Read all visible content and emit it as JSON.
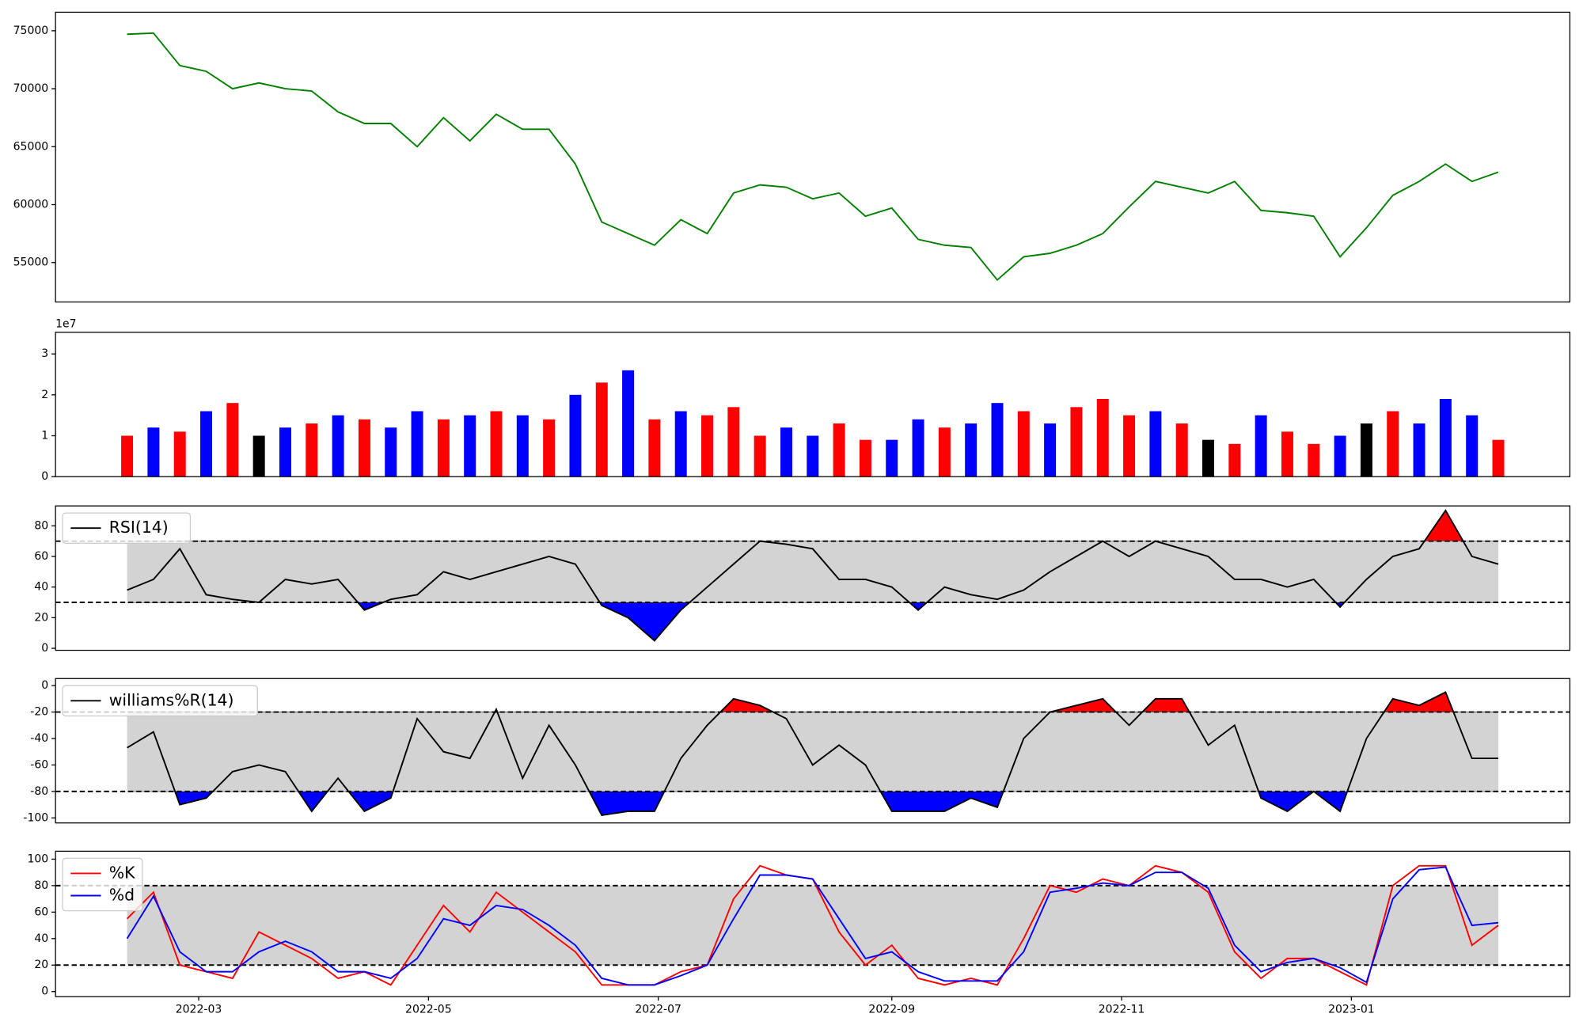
{
  "chart_data": [
    {
      "type": "line",
      "xlim": [
        -19,
        383
      ],
      "ylim": [
        51600,
        76600
      ],
      "yticks": [
        55000,
        60000,
        65000,
        70000,
        75000
      ],
      "x": [
        0,
        7,
        14,
        21,
        28,
        35,
        42,
        49,
        56,
        63,
        70,
        77,
        84,
        91,
        98,
        105,
        112,
        119,
        126,
        133,
        140,
        147,
        154,
        161,
        168,
        175,
        182,
        189,
        196,
        203,
        210,
        217,
        224,
        231,
        238,
        245,
        252,
        259,
        266,
        273,
        280,
        287,
        294,
        301,
        308,
        315,
        322,
        329,
        336,
        343,
        350,
        357,
        364
      ],
      "series": [
        {
          "color": "green",
          "values": [
            74700,
            74800,
            72000,
            71500,
            70000,
            70500,
            70000,
            69800,
            68000,
            67000,
            67000,
            65000,
            67500,
            65500,
            67800,
            66500,
            66500,
            63500,
            58500,
            57500,
            56500,
            58700,
            57500,
            61000,
            61700,
            61500,
            60500,
            61000,
            59000,
            59700,
            57000,
            56500,
            56300,
            53500,
            55500,
            55800,
            56500,
            57500,
            59800,
            62000,
            61500,
            61000,
            62000,
            59500,
            59300,
            59000,
            55500,
            58000,
            60800,
            62000,
            63500,
            62000,
            62800
          ]
        }
      ]
    },
    {
      "type": "bar",
      "xlim": [
        -19,
        383
      ],
      "ylim": [
        0,
        3.53
      ],
      "yticks": [
        0,
        1,
        2,
        3
      ],
      "y_offset_label": "1e7",
      "x": [
        0,
        7,
        14,
        21,
        28,
        35,
        42,
        49,
        56,
        63,
        70,
        77,
        84,
        91,
        98,
        105,
        112,
        119,
        126,
        133,
        140,
        147,
        154,
        161,
        168,
        175,
        182,
        189,
        196,
        203,
        210,
        217,
        224,
        231,
        238,
        245,
        252,
        259,
        266,
        273,
        280,
        287,
        294,
        301,
        308,
        315,
        322,
        329,
        336,
        343,
        350,
        357,
        364
      ],
      "values": [
        1.0,
        1.2,
        1.1,
        1.6,
        1.8,
        1.0,
        1.2,
        1.3,
        1.5,
        1.4,
        1.2,
        1.6,
        1.4,
        1.5,
        1.6,
        1.5,
        1.4,
        2.0,
        2.3,
        2.6,
        1.4,
        1.6,
        1.5,
        1.7,
        1.0,
        1.2,
        1.0,
        1.3,
        0.9,
        0.9,
        1.4,
        1.2,
        1.3,
        1.8,
        1.6,
        1.3,
        1.7,
        1.9,
        1.5,
        1.6,
        1.3,
        0.9,
        0.8,
        1.5,
        1.1,
        0.8,
        1.0,
        1.3,
        1.6,
        1.3,
        1.9,
        1.5,
        0.9
      ],
      "colors": [
        "red",
        "blue",
        "red",
        "blue",
        "red",
        "black",
        "blue",
        "red",
        "blue",
        "red",
        "blue",
        "blue",
        "red",
        "blue",
        "red",
        "blue",
        "red",
        "blue",
        "red",
        "blue",
        "red",
        "blue",
        "red",
        "red",
        "red",
        "blue",
        "blue",
        "red",
        "red",
        "blue",
        "blue",
        "red",
        "blue",
        "blue",
        "red",
        "blue",
        "red",
        "red",
        "red",
        "blue",
        "red",
        "black",
        "red",
        "blue",
        "red",
        "red",
        "blue",
        "black",
        "red",
        "blue",
        "blue",
        "blue",
        "red"
      ]
    },
    {
      "type": "line",
      "xlim": [
        -19,
        383
      ],
      "ylim": [
        -1.3,
        93
      ],
      "yticks": [
        0,
        20,
        40,
        60,
        80
      ],
      "hlines": [
        30,
        70
      ],
      "fill_colors": {
        "band": "lightgray",
        "below": "blue",
        "above": "red"
      },
      "x": [
        0,
        7,
        14,
        21,
        28,
        35,
        42,
        49,
        56,
        63,
        70,
        77,
        84,
        91,
        98,
        105,
        112,
        119,
        126,
        133,
        140,
        147,
        154,
        161,
        168,
        175,
        182,
        189,
        196,
        203,
        210,
        217,
        224,
        231,
        238,
        245,
        252,
        259,
        266,
        273,
        280,
        287,
        294,
        301,
        308,
        315,
        322,
        329,
        336,
        343,
        350,
        357,
        364
      ],
      "series": [
        {
          "name": "RSI(14)",
          "color": "black",
          "fill": true,
          "values": [
            38,
            45,
            65,
            35,
            32,
            30,
            45,
            42,
            45,
            25,
            32,
            35,
            50,
            45,
            50,
            55,
            60,
            55,
            28,
            20,
            5,
            25,
            40,
            55,
            70,
            68,
            65,
            45,
            45,
            40,
            25,
            40,
            35,
            32,
            38,
            50,
            60,
            70,
            60,
            70,
            65,
            60,
            45,
            45,
            40,
            45,
            27,
            45,
            60,
            65,
            90,
            60,
            55
          ]
        }
      ]
    },
    {
      "type": "line",
      "xlim": [
        -19,
        383
      ],
      "ylim": [
        -103.8,
        5.3
      ],
      "yticks": [
        -100,
        -80,
        -60,
        -40,
        -20,
        0
      ],
      "hlines": [
        -80,
        -20
      ],
      "fill_colors": {
        "band": "lightgray",
        "below": "blue",
        "above": "red"
      },
      "x": [
        0,
        7,
        14,
        21,
        28,
        35,
        42,
        49,
        56,
        63,
        70,
        77,
        84,
        91,
        98,
        105,
        112,
        119,
        126,
        133,
        140,
        147,
        154,
        161,
        168,
        175,
        182,
        189,
        196,
        203,
        210,
        217,
        224,
        231,
        238,
        245,
        252,
        259,
        266,
        273,
        280,
        287,
        294,
        301,
        308,
        315,
        322,
        329,
        336,
        343,
        350,
        357,
        364
      ],
      "series": [
        {
          "name": "williams%R(14)",
          "color": "black",
          "fill": true,
          "values": [
            -47,
            -35,
            -90,
            -85,
            -65,
            -60,
            -65,
            -95,
            -70,
            -95,
            -85,
            -25,
            -50,
            -55,
            -18,
            -70,
            -30,
            -60,
            -98,
            -95,
            -95,
            -55,
            -30,
            -10,
            -15,
            -25,
            -60,
            -45,
            -60,
            -95,
            -95,
            -95,
            -85,
            -92,
            -40,
            -20,
            -15,
            -10,
            -30,
            -10,
            -10,
            -45,
            -30,
            -85,
            -95,
            -80,
            -95,
            -40,
            -10,
            -15,
            -5,
            -55,
            -55
          ]
        }
      ]
    },
    {
      "type": "line",
      "xlim": [
        -19,
        383
      ],
      "ylim": [
        -3.8,
        106
      ],
      "yticks": [
        0,
        20,
        40,
        60,
        80,
        100
      ],
      "hlines": [
        20,
        80
      ],
      "fill_colors": {
        "band": "lightgray"
      },
      "xticks": [
        {
          "value": 19,
          "label": "2022-03"
        },
        {
          "value": 80,
          "label": "2022-05"
        },
        {
          "value": 141,
          "label": "2022-07"
        },
        {
          "value": 203,
          "label": "2022-09"
        },
        {
          "value": 264,
          "label": "2022-11"
        },
        {
          "value": 325,
          "label": "2023-01"
        }
      ],
      "x": [
        0,
        7,
        14,
        21,
        28,
        35,
        42,
        49,
        56,
        63,
        70,
        77,
        84,
        91,
        98,
        105,
        112,
        119,
        126,
        133,
        140,
        147,
        154,
        161,
        168,
        175,
        182,
        189,
        196,
        203,
        210,
        217,
        224,
        231,
        238,
        245,
        252,
        259,
        266,
        273,
        280,
        287,
        294,
        301,
        308,
        315,
        322,
        329,
        336,
        343,
        350,
        357,
        364
      ],
      "series": [
        {
          "name": "%K",
          "color": "red",
          "values": [
            55,
            75,
            20,
            15,
            10,
            45,
            35,
            25,
            10,
            15,
            5,
            35,
            65,
            45,
            75,
            60,
            45,
            30,
            5,
            5,
            5,
            15,
            20,
            70,
            95,
            88,
            85,
            45,
            20,
            35,
            10,
            5,
            10,
            5,
            40,
            80,
            75,
            85,
            80,
            95,
            90,
            75,
            30,
            10,
            25,
            25,
            15,
            5,
            80,
            95,
            95,
            35,
            50
          ]
        },
        {
          "name": "%d",
          "color": "blue",
          "values": [
            40,
            72,
            30,
            15,
            15,
            30,
            38,
            30,
            15,
            15,
            10,
            25,
            55,
            50,
            65,
            62,
            50,
            35,
            10,
            5,
            5,
            12,
            20,
            55,
            88,
            88,
            85,
            55,
            25,
            30,
            15,
            8,
            8,
            8,
            30,
            75,
            78,
            82,
            80,
            90,
            90,
            78,
            35,
            15,
            22,
            25,
            18,
            7,
            70,
            92,
            94,
            50,
            52
          ]
        }
      ]
    }
  ]
}
